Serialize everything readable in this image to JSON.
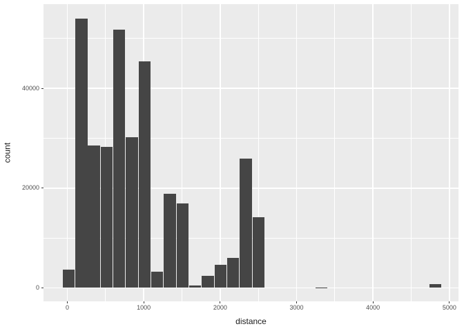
{
  "chart_data": {
    "type": "bar",
    "subtype": "histogram",
    "title": "",
    "xlabel": "distance",
    "ylabel": "count",
    "binwidth": 165.5,
    "bins": [
      {
        "x": 18,
        "count": 3600
      },
      {
        "x": 184,
        "count": 54000
      },
      {
        "x": 349,
        "count": 28600
      },
      {
        "x": 515,
        "count": 28300
      },
      {
        "x": 680,
        "count": 51800
      },
      {
        "x": 846,
        "count": 30200
      },
      {
        "x": 1011,
        "count": 45400
      },
      {
        "x": 1177,
        "count": 3300
      },
      {
        "x": 1342,
        "count": 18900
      },
      {
        "x": 1508,
        "count": 16900
      },
      {
        "x": 1673,
        "count": 500
      },
      {
        "x": 1839,
        "count": 2400
      },
      {
        "x": 2004,
        "count": 4600
      },
      {
        "x": 2170,
        "count": 6000
      },
      {
        "x": 2335,
        "count": 25900
      },
      {
        "x": 2501,
        "count": 14200
      },
      {
        "x": 3328,
        "count": 100
      },
      {
        "x": 4818,
        "count": 700
      }
    ],
    "x_ticks": [
      0,
      1000,
      2000,
      3000,
      4000,
      5000
    ],
    "x_tick_labels": [
      "0",
      "1000",
      "2000",
      "3000",
      "4000",
      "5000"
    ],
    "x_minor": [
      500,
      1500,
      2500,
      3500,
      4500
    ],
    "y_ticks": [
      0,
      20000,
      40000
    ],
    "y_tick_labels": [
      "0",
      "20000",
      "40000"
    ],
    "y_minor": [
      10000,
      30000,
      50000
    ],
    "xlim": [
      -312,
      5119
    ],
    "ylim": [
      -2700,
      56900
    ],
    "grid": true,
    "legend": "none",
    "colors": {
      "bar": "#454545",
      "panel_bg": "#EBEBEB",
      "gridline": "#FFFFFF",
      "tick_mark": "#333333",
      "tick_label": "#4D4D4D",
      "axis_title": "#1A1A1A",
      "page_bg": "#FFFFFF"
    }
  }
}
